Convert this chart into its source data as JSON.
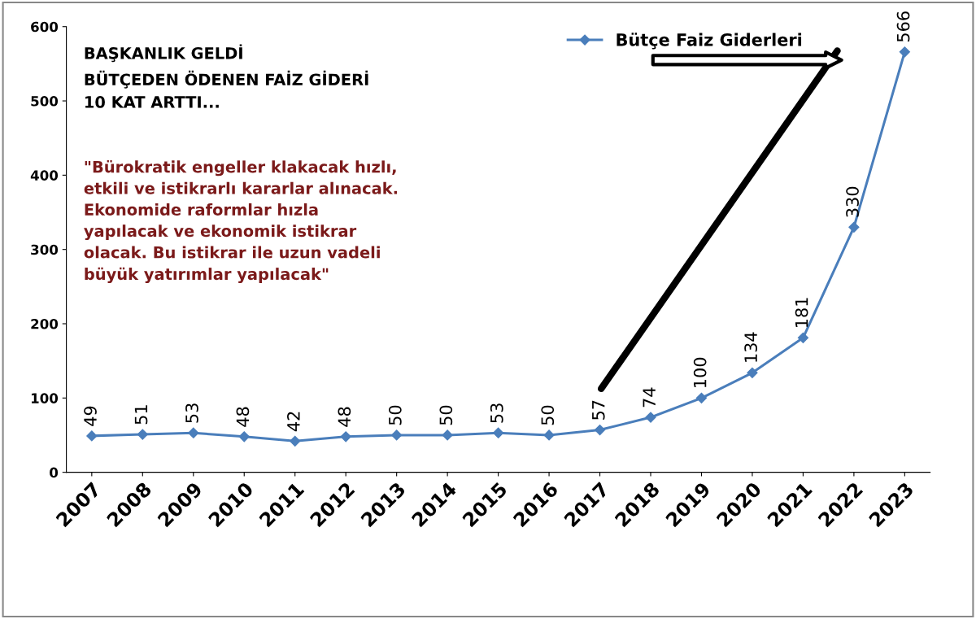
{
  "chart_data": {
    "type": "line",
    "categories": [
      "2007",
      "2008",
      "2009",
      "2010",
      "2011",
      "2012",
      "2013",
      "2014",
      "2015",
      "2016",
      "2017",
      "2018",
      "2019",
      "2020",
      "2021",
      "2022",
      "2023"
    ],
    "series": [
      {
        "name": "Bütçe Faiz Giderleri",
        "color": "#4a7ebb",
        "values": [
          49,
          51,
          53,
          48,
          42,
          48,
          50,
          50,
          53,
          50,
          57,
          74,
          100,
          134,
          181,
          330,
          566
        ]
      }
    ],
    "ylim": [
      0,
      600
    ],
    "yticks": [
      0,
      100,
      200,
      300,
      400,
      500,
      600
    ],
    "data_labels": true,
    "grid": false,
    "legend": "top right",
    "marker": "diamond",
    "line_style": "solid",
    "annotations": [
      "BAŞKANLIK GELDİ\nBÜTÇEDEN ÖDENEN FAİZ GİDERİ\n10 KAT ARTTI...",
      "\"Bürokratik engeller klakacak hızlı,\netkili ve istikrarlı kararlar alınacak.\nEkonomide raformlar hızla\nyapılacak ve ekonomik istikrar\nolacak. Bu istikrar ile uzun vadeli\nbüyük yatırımlar yapılacak\""
    ]
  }
}
